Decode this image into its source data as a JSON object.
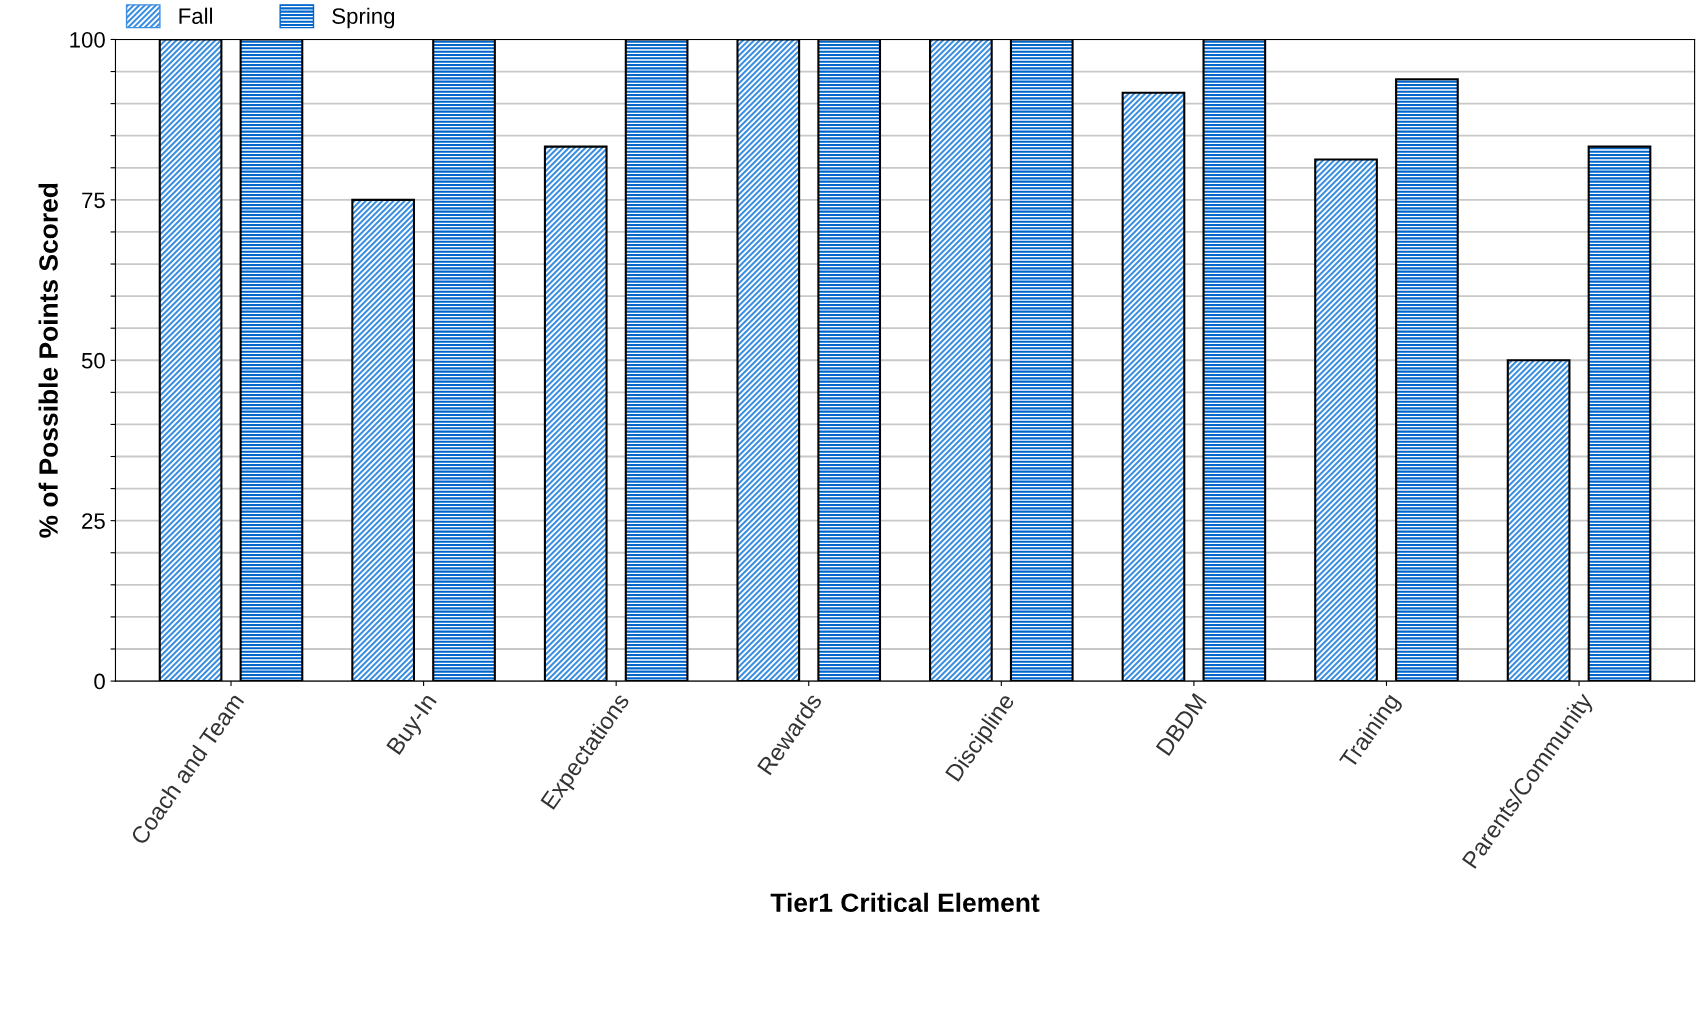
{
  "chart_data": {
    "type": "bar",
    "xlabel": "Tier1 Critical Element",
    "ylabel": "% of Possible Points Scored",
    "categories": [
      "Coach and Team",
      "Buy-In",
      "Expectations",
      "Rewards",
      "Discipline",
      "DBDM",
      "Training",
      "Parents/Community"
    ],
    "series": [
      {
        "name": "Fall",
        "color": "#3d8fe0",
        "values": [
          100,
          75,
          83.3,
          100,
          100,
          91.7,
          81.3,
          50
        ]
      },
      {
        "name": "Spring",
        "color": "#0066cc",
        "values": [
          100,
          100,
          100,
          100,
          100,
          100,
          93.8,
          83.3
        ]
      }
    ],
    "ylim": [
      0,
      100
    ],
    "yticks": [
      0,
      {
        "value": 5,
        "label": null
      },
      {
        "value": 10,
        "label": null
      },
      {
        "value": 15,
        "label": null
      },
      {
        "value": 20,
        "label": null
      },
      25,
      {
        "value": 30,
        "label": null
      },
      {
        "value": 35,
        "label": null
      },
      {
        "value": 40,
        "label": null
      },
      {
        "value": 45,
        "label": null
      },
      50,
      {
        "value": 55,
        "label": null
      },
      {
        "value": 60,
        "label": null
      },
      {
        "value": 65,
        "label": null
      },
      {
        "value": 70,
        "label": null
      },
      75,
      {
        "value": 80,
        "label": null
      },
      {
        "value": 85,
        "label": null
      },
      {
        "value": 90,
        "label": null
      },
      {
        "value": 95,
        "label": null
      },
      100
    ],
    "grid": "y",
    "legend": "top left"
  }
}
